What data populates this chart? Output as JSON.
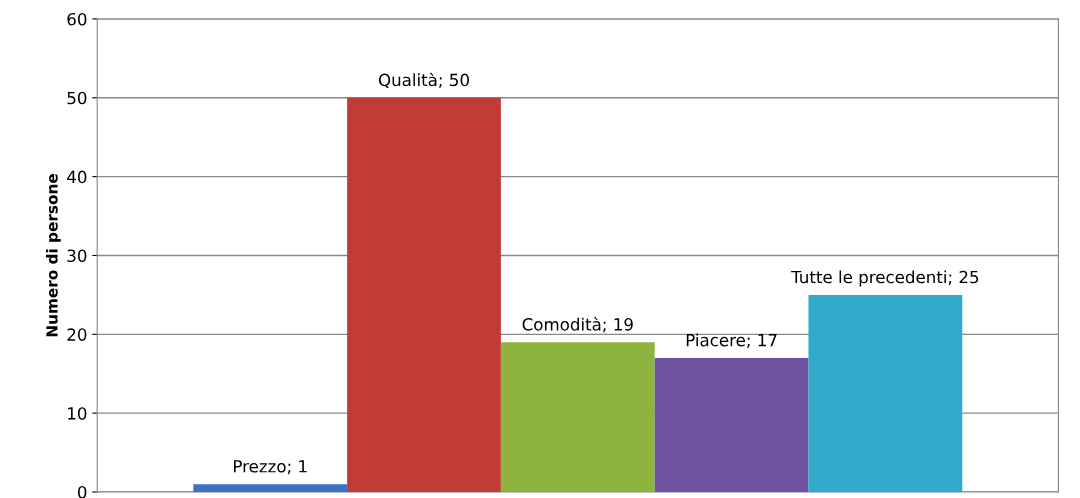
{
  "chart_data": {
    "type": "bar",
    "ylabel": "Numero di persone",
    "categories": [
      null
    ],
    "series": [
      {
        "color": "#3d72c0",
        "values": [
          1
        ],
        "value_labels": [
          "Prezzo; 1"
        ]
      },
      {
        "color": "#c23c37",
        "values": [
          50
        ],
        "value_labels": [
          "Qualità; 50"
        ]
      },
      {
        "color": "#8cb43f",
        "values": [
          19
        ],
        "value_labels": [
          "Comodità; 19"
        ]
      },
      {
        "color": "#6e51a0",
        "values": [
          17
        ],
        "value_labels": [
          "Piacere; 17"
        ]
      },
      {
        "color": "#30aacb",
        "values": [
          25
        ],
        "value_labels": [
          "Tutte le precedenti; 25"
        ]
      }
    ],
    "ylim": [
      0,
      60
    ],
    "yticks": [
      0,
      10,
      20,
      30,
      40,
      50,
      60
    ],
    "grid": "y"
  }
}
